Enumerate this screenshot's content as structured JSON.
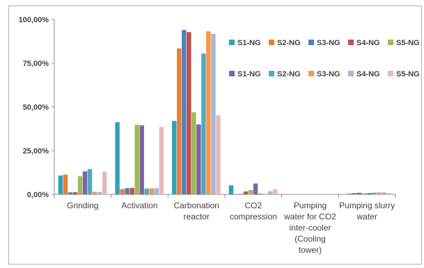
{
  "chart_data": {
    "type": "bar",
    "title": "",
    "xlabel": "",
    "ylabel": "",
    "ylim": [
      0,
      1.0
    ],
    "y_ticks": [
      {
        "value": 0.0,
        "label": "0,00%"
      },
      {
        "value": 0.25,
        "label": "25,00%"
      },
      {
        "value": 0.5,
        "label": "50,00%"
      },
      {
        "value": 0.75,
        "label": "75,00%"
      },
      {
        "value": 1.0,
        "label": "100,00%"
      }
    ],
    "grid": false,
    "legend_position": "top-right",
    "categories": [
      [
        "Grinding"
      ],
      [
        "Activation"
      ],
      [
        "Carbonation",
        "reactor"
      ],
      [
        "CO2",
        "compression"
      ],
      [
        "Pumping",
        "water for CO2",
        "inter-cooler",
        "(Cooling",
        "tower)"
      ],
      [
        "Pumping slurry",
        "water"
      ]
    ],
    "series": [
      {
        "name": "S1-NG",
        "color": "#31a2b6",
        "values": [
          0.108,
          0.413,
          0.42,
          0.052,
          0.0,
          0.0
        ]
      },
      {
        "name": "S2-NG",
        "color": "#ed7d31",
        "values": [
          0.113,
          0.03,
          0.835,
          0.003,
          0.0,
          0.006
        ]
      },
      {
        "name": "S3-NG",
        "color": "#4f81bd",
        "values": [
          0.012,
          0.036,
          0.94,
          0.003,
          0.0,
          0.008
        ]
      },
      {
        "name": "S4-NG",
        "color": "#c0504d",
        "values": [
          0.013,
          0.037,
          0.928,
          0.017,
          0.0,
          0.009
        ]
      },
      {
        "name": "S5-NG",
        "color": "#9bbb59",
        "values": [
          0.105,
          0.398,
          0.47,
          0.025,
          0.0,
          0.007
        ]
      },
      {
        "name": "S1-NG",
        "color": "#8064a2",
        "values": [
          0.132,
          0.395,
          0.4,
          0.062,
          0.0,
          0.008
        ]
      },
      {
        "name": "S2-NG",
        "color": "#4bacc6",
        "values": [
          0.145,
          0.033,
          0.805,
          0.005,
          0.0,
          0.01
        ]
      },
      {
        "name": "S3-NG",
        "color": "#f79646",
        "values": [
          0.015,
          0.034,
          0.932,
          0.003,
          0.0,
          0.011
        ]
      },
      {
        "name": "S4-NG",
        "color": "#a5b6dc",
        "values": [
          0.014,
          0.035,
          0.918,
          0.018,
          0.0,
          0.012
        ]
      },
      {
        "name": "S5-NG",
        "color": "#e6b9b8",
        "values": [
          0.13,
          0.385,
          0.452,
          0.03,
          0.0,
          0.008
        ]
      }
    ]
  }
}
